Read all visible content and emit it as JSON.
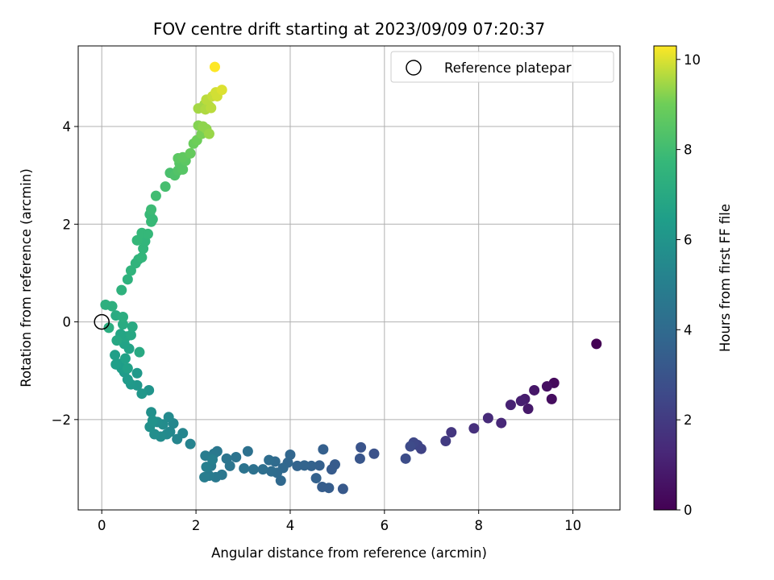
{
  "chart_data": {
    "type": "scatter",
    "title": "FOV centre drift starting at 2023/09/09 07:20:37",
    "xlabel": "Angular distance from reference (arcmin)",
    "ylabel": "Rotation from reference (arcmin)",
    "xlim": [
      -0.5,
      11.0
    ],
    "ylim": [
      -3.85,
      5.65
    ],
    "xticks": [
      0,
      2,
      4,
      6,
      8,
      10
    ],
    "yticks": [
      -2,
      0,
      2,
      4
    ],
    "grid": true,
    "legend": {
      "placement": "top-right",
      "entries": [
        "Reference platepar"
      ]
    },
    "reference_point": {
      "x": 0.0,
      "y": 0.0
    },
    "colorbar": {
      "label": "Hours from first FF file",
      "range": [
        0,
        10.3
      ],
      "ticks": [
        0,
        2,
        4,
        6,
        8,
        10
      ],
      "colormap": "viridis"
    },
    "points": [
      [
        10.5,
        -0.45,
        0.0
      ],
      [
        9.6,
        -1.25,
        0.3
      ],
      [
        9.55,
        -1.58,
        0.4
      ],
      [
        9.45,
        -1.32,
        0.5
      ],
      [
        9.18,
        -1.4,
        0.7
      ],
      [
        9.05,
        -1.78,
        0.8
      ],
      [
        8.98,
        -1.58,
        0.9
      ],
      [
        8.9,
        -1.62,
        1.0
      ],
      [
        8.68,
        -1.7,
        1.1
      ],
      [
        8.48,
        -2.07,
        1.3
      ],
      [
        8.2,
        -1.97,
        1.4
      ],
      [
        7.9,
        -2.18,
        1.6
      ],
      [
        7.42,
        -2.26,
        1.8
      ],
      [
        7.3,
        -2.44,
        2.0
      ],
      [
        6.78,
        -2.6,
        2.3
      ],
      [
        6.7,
        -2.52,
        2.4
      ],
      [
        6.62,
        -2.47,
        2.5
      ],
      [
        6.55,
        -2.55,
        2.6
      ],
      [
        6.45,
        -2.8,
        2.7
      ],
      [
        5.78,
        -2.7,
        2.9
      ],
      [
        5.5,
        -2.57,
        3.0
      ],
      [
        5.48,
        -2.8,
        3.1
      ],
      [
        5.12,
        -3.42,
        3.2
      ],
      [
        4.95,
        -2.92,
        3.3
      ],
      [
        4.88,
        -3.02,
        3.3
      ],
      [
        4.82,
        -3.4,
        3.4
      ],
      [
        4.68,
        -3.38,
        3.4
      ],
      [
        4.7,
        -2.61,
        3.5
      ],
      [
        4.62,
        -2.94,
        3.5
      ],
      [
        4.55,
        -3.2,
        3.6
      ],
      [
        4.45,
        -2.95,
        3.6
      ],
      [
        4.3,
        -2.94,
        3.7
      ],
      [
        4.15,
        -2.95,
        3.7
      ],
      [
        4.0,
        -2.72,
        3.8
      ],
      [
        3.95,
        -2.88,
        3.8
      ],
      [
        3.85,
        -2.99,
        3.9
      ],
      [
        3.8,
        -3.25,
        3.9
      ],
      [
        3.72,
        -3.09,
        4.0
      ],
      [
        3.68,
        -2.86,
        4.0
      ],
      [
        3.6,
        -3.06,
        4.1
      ],
      [
        3.55,
        -2.83,
        4.1
      ],
      [
        3.42,
        -3.02,
        4.2
      ],
      [
        3.22,
        -3.02,
        4.3
      ],
      [
        3.1,
        -2.65,
        4.3
      ],
      [
        3.02,
        -3.0,
        4.4
      ],
      [
        2.85,
        -2.77,
        4.4
      ],
      [
        2.72,
        -2.95,
        4.5
      ],
      [
        2.65,
        -2.8,
        4.5
      ],
      [
        2.55,
        -3.13,
        4.6
      ],
      [
        2.45,
        -2.65,
        4.6
      ],
      [
        2.42,
        -3.18,
        4.7
      ],
      [
        2.38,
        -2.7,
        4.7
      ],
      [
        2.32,
        -2.95,
        4.8
      ],
      [
        2.28,
        -3.15,
        4.8
      ],
      [
        2.2,
        -2.74,
        4.9
      ],
      [
        2.18,
        -3.18,
        4.9
      ],
      [
        2.22,
        -2.97,
        5.0
      ],
      [
        2.35,
        -2.82,
        5.0
      ],
      [
        1.88,
        -2.5,
        5.2
      ],
      [
        1.72,
        -2.28,
        5.3
      ],
      [
        1.6,
        -2.4,
        5.3
      ],
      [
        1.52,
        -2.08,
        5.4
      ],
      [
        1.45,
        -2.25,
        5.4
      ],
      [
        1.42,
        -1.95,
        5.5
      ],
      [
        1.38,
        -2.3,
        5.5
      ],
      [
        1.3,
        -2.1,
        5.6
      ],
      [
        1.25,
        -2.35,
        5.6
      ],
      [
        1.18,
        -2.05,
        5.7
      ],
      [
        1.12,
        -2.3,
        5.7
      ],
      [
        1.05,
        -1.85,
        5.8
      ],
      [
        1.02,
        -2.15,
        5.8
      ],
      [
        1.08,
        -2.02,
        5.9
      ],
      [
        1.0,
        -1.4,
        6.0
      ],
      [
        0.85,
        -1.47,
        6.1
      ],
      [
        0.75,
        -1.3,
        6.1
      ],
      [
        0.75,
        -1.05,
        6.2
      ],
      [
        0.62,
        -1.28,
        6.2
      ],
      [
        0.55,
        -1.18,
        6.3
      ],
      [
        0.48,
        -1.03,
        6.3
      ],
      [
        0.42,
        -0.95,
        6.4
      ],
      [
        0.38,
        -0.86,
        6.4
      ],
      [
        0.3,
        -0.87,
        6.5
      ],
      [
        0.28,
        -0.68,
        6.5
      ],
      [
        0.55,
        -0.95,
        6.6
      ],
      [
        0.5,
        -0.75,
        6.6
      ],
      [
        0.58,
        -0.55,
        6.7
      ],
      [
        0.48,
        -0.45,
        6.7
      ],
      [
        0.52,
        -0.3,
        6.8
      ],
      [
        0.4,
        -0.25,
        6.8
      ],
      [
        0.32,
        -0.38,
        6.9
      ],
      [
        0.62,
        -0.27,
        6.9
      ],
      [
        0.8,
        -0.62,
        7.0
      ],
      [
        0.65,
        -0.1,
        7.0
      ],
      [
        0.45,
        -0.05,
        7.1
      ],
      [
        0.3,
        0.13,
        7.1
      ],
      [
        0.45,
        0.1,
        7.2
      ],
      [
        0.15,
        -0.12,
        7.2
      ],
      [
        0.22,
        0.32,
        7.3
      ],
      [
        0.08,
        0.35,
        7.3
      ],
      [
        0.42,
        0.65,
        7.4
      ],
      [
        0.55,
        0.87,
        7.4
      ],
      [
        0.62,
        1.05,
        7.5
      ],
      [
        0.72,
        1.2,
        7.5
      ],
      [
        0.78,
        1.28,
        7.5
      ],
      [
        0.85,
        1.32,
        7.6
      ],
      [
        0.88,
        1.5,
        7.6
      ],
      [
        0.92,
        1.65,
        7.6
      ],
      [
        0.75,
        1.67,
        7.7
      ],
      [
        0.85,
        1.82,
        7.7
      ],
      [
        0.98,
        1.8,
        7.7
      ],
      [
        1.05,
        2.05,
        7.8
      ],
      [
        1.08,
        2.1,
        7.8
      ],
      [
        1.02,
        2.2,
        7.8
      ],
      [
        1.05,
        2.3,
        7.9
      ],
      [
        1.15,
        2.58,
        8.0
      ],
      [
        1.35,
        2.77,
        8.1
      ],
      [
        1.45,
        3.05,
        8.2
      ],
      [
        1.55,
        3.0,
        8.3
      ],
      [
        1.62,
        3.1,
        8.4
      ],
      [
        1.72,
        3.12,
        8.5
      ],
      [
        1.65,
        3.25,
        8.5
      ],
      [
        1.78,
        3.3,
        8.6
      ],
      [
        1.62,
        3.35,
        8.6
      ],
      [
        1.72,
        3.37,
        8.7
      ],
      [
        1.88,
        3.45,
        8.8
      ],
      [
        1.95,
        3.65,
        8.9
      ],
      [
        2.02,
        3.72,
        9.0
      ],
      [
        2.12,
        3.85,
        9.1
      ],
      [
        2.05,
        4.02,
        9.2
      ],
      [
        2.15,
        4.0,
        9.3
      ],
      [
        2.22,
        3.95,
        9.3
      ],
      [
        2.28,
        3.85,
        9.4
      ],
      [
        2.05,
        4.37,
        9.5
      ],
      [
        2.18,
        4.45,
        9.5
      ],
      [
        2.2,
        4.35,
        9.6
      ],
      [
        2.28,
        4.42,
        9.6
      ],
      [
        2.32,
        4.38,
        9.7
      ],
      [
        2.22,
        4.55,
        9.7
      ],
      [
        2.35,
        4.62,
        9.8
      ],
      [
        2.45,
        4.62,
        9.9
      ],
      [
        2.42,
        4.7,
        9.9
      ],
      [
        2.55,
        4.75,
        10.0
      ],
      [
        2.4,
        5.22,
        10.3
      ]
    ]
  }
}
